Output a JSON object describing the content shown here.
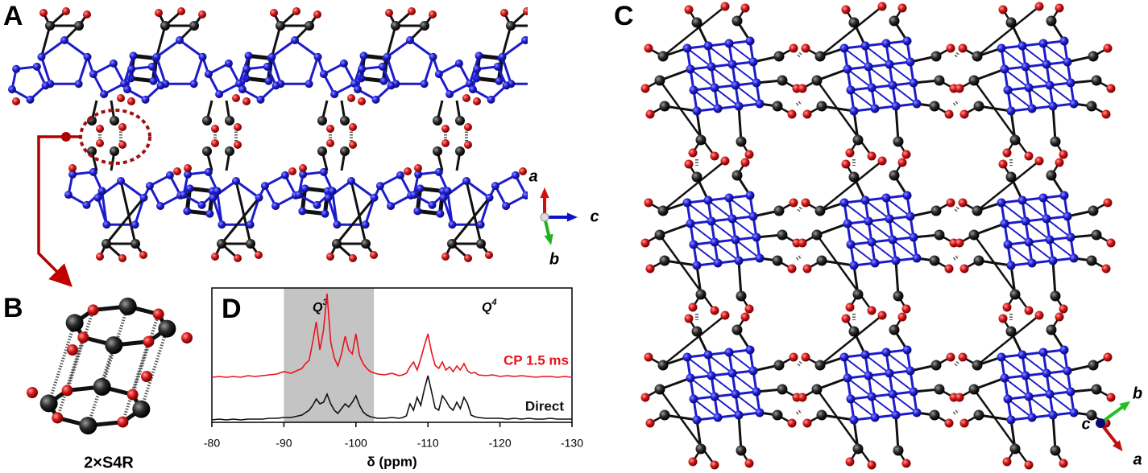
{
  "panels": {
    "A": {
      "label": "A",
      "axes": {
        "a": "a",
        "b": "b",
        "c": "c"
      }
    },
    "B": {
      "label": "B",
      "caption": "2×S4R"
    },
    "C": {
      "label": "C",
      "axes": {
        "a": "a",
        "b": "b",
        "c": "c"
      }
    },
    "D": {
      "label": "D"
    }
  },
  "chart_data": {
    "type": "line",
    "xlabel": "δ (ppm)",
    "xlim": [
      -80,
      -130
    ],
    "xticks": [
      -80,
      -90,
      -100,
      -110,
      -120,
      -130
    ],
    "highlight_range": [
      -90,
      -102.5
    ],
    "annotations": [
      {
        "text": "Q",
        "superscript": "3"
      },
      {
        "text": "Q",
        "superscript": "4"
      }
    ],
    "x": [
      -80,
      -81,
      -82,
      -83,
      -84,
      -85,
      -86,
      -87,
      -88,
      -89,
      -90,
      -91,
      -92,
      -92.5,
      -93,
      -93.5,
      -94,
      -94.5,
      -95,
      -95.5,
      -96,
      -96.5,
      -97,
      -97.5,
      -98,
      -98.5,
      -99,
      -99.5,
      -100,
      -100.5,
      -101,
      -101.5,
      -102,
      -103,
      -104,
      -105,
      -106,
      -106.5,
      -107,
      -107.5,
      -108,
      -108.5,
      -109,
      -109.5,
      -110,
      -110.5,
      -111,
      -111.5,
      -112,
      -112.5,
      -113,
      -113.5,
      -114,
      -114.5,
      -115,
      -115.5,
      -116,
      -116.5,
      -117,
      -118,
      -119,
      -120,
      -121,
      -122,
      -123,
      -124,
      -125,
      -126,
      -127,
      -128,
      -129,
      -130
    ],
    "series": [
      {
        "name": "CP 1.5 ms",
        "color": "#e8141b",
        "values": [
          1,
          2,
          1,
          2,
          1,
          3,
          2,
          3,
          4,
          5,
          8,
          6,
          10,
          12,
          18,
          22,
          45,
          70,
          35,
          60,
          105,
          45,
          25,
          15,
          30,
          52,
          35,
          30,
          55,
          28,
          18,
          12,
          8,
          5,
          4,
          6,
          3,
          4,
          6,
          14,
          20,
          10,
          24,
          40,
          55,
          32,
          16,
          12,
          20,
          10,
          14,
          8,
          15,
          10,
          18,
          9,
          6,
          7,
          4,
          3,
          4,
          2,
          3,
          2,
          3,
          2,
          1,
          2,
          2,
          1,
          2,
          1
        ]
      },
      {
        "name": "Direct",
        "color": "#111111",
        "values": [
          0,
          1,
          0,
          1,
          0,
          1,
          1,
          1,
          2,
          2,
          3,
          3,
          5,
          6,
          9,
          12,
          18,
          26,
          20,
          22,
          32,
          20,
          12,
          8,
          14,
          20,
          16,
          22,
          30,
          18,
          10,
          6,
          4,
          2,
          2,
          3,
          2,
          3,
          5,
          20,
          12,
          28,
          18,
          38,
          55,
          35,
          15,
          12,
          30,
          24,
          16,
          12,
          22,
          14,
          28,
          20,
          6,
          4,
          3,
          2,
          2,
          2,
          1,
          2,
          1,
          2,
          1,
          1,
          2,
          1,
          1,
          1
        ]
      }
    ]
  }
}
